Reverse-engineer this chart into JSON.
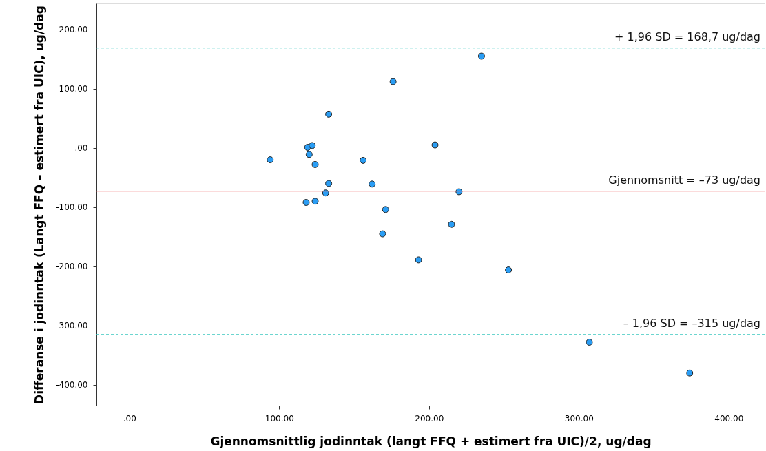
{
  "chart_data": {
    "type": "scatter",
    "xlabel": "Gjennomsnittlig jodinntak (langt FFQ + estimert fra UIC)/2, ug/dag",
    "ylabel": "Differanse i jodinntak (Langt FFQ – estimert fra UIC), ug/dag",
    "x": [
      94,
      119,
      122,
      120,
      124,
      133,
      176,
      156,
      133,
      162,
      131,
      118,
      124,
      171,
      235,
      204,
      220,
      215,
      169,
      193,
      253,
      307,
      374
    ],
    "series": [
      {
        "color": "#2a9df4",
        "values": [
          -20,
          1,
          4,
          -11,
          -28,
          57,
          112,
          -21,
          -60,
          -61,
          -76,
          -92,
          -90,
          -104,
          155,
          5,
          -74,
          -129,
          -145,
          -189,
          -206,
          -328,
          -380
        ]
      }
    ],
    "marker": "circle",
    "grid": false,
    "xlim": [
      -22,
      424
    ],
    "ylim": [
      -435,
      244
    ],
    "xticks": [
      {
        "value": 0,
        "label": ".00"
      },
      {
        "value": 100,
        "label": "100.00"
      },
      {
        "value": 200,
        "label": "200.00"
      },
      {
        "value": 300,
        "label": "300.00"
      },
      {
        "value": 400,
        "label": "400.00"
      }
    ],
    "yticks": [
      {
        "value": -400,
        "label": "-400.00"
      },
      {
        "value": -300,
        "label": "-300.00"
      },
      {
        "value": -200,
        "label": "-200.00"
      },
      {
        "value": -100,
        "label": "-100.00"
      },
      {
        "value": 0,
        "label": ".00"
      },
      {
        "value": 100,
        "label": "100.00"
      },
      {
        "value": 200,
        "label": "200.00"
      }
    ],
    "ref_lines": [
      {
        "axis": "y",
        "value": 168.7,
        "label": "+ 1,96 SD = 168,7 ug/dag",
        "color": "#3cc8c0",
        "line_style": "dashed"
      },
      {
        "axis": "y",
        "value": -73,
        "label": "Gjennomsnitt = –73 ug/dag",
        "color": "#f07070",
        "line_style": "solid"
      },
      {
        "axis": "y",
        "value": -315,
        "label": "– 1,96 SD = –315 ug/dag",
        "color": "#3cc8c0",
        "line_style": "dashed"
      }
    ]
  }
}
